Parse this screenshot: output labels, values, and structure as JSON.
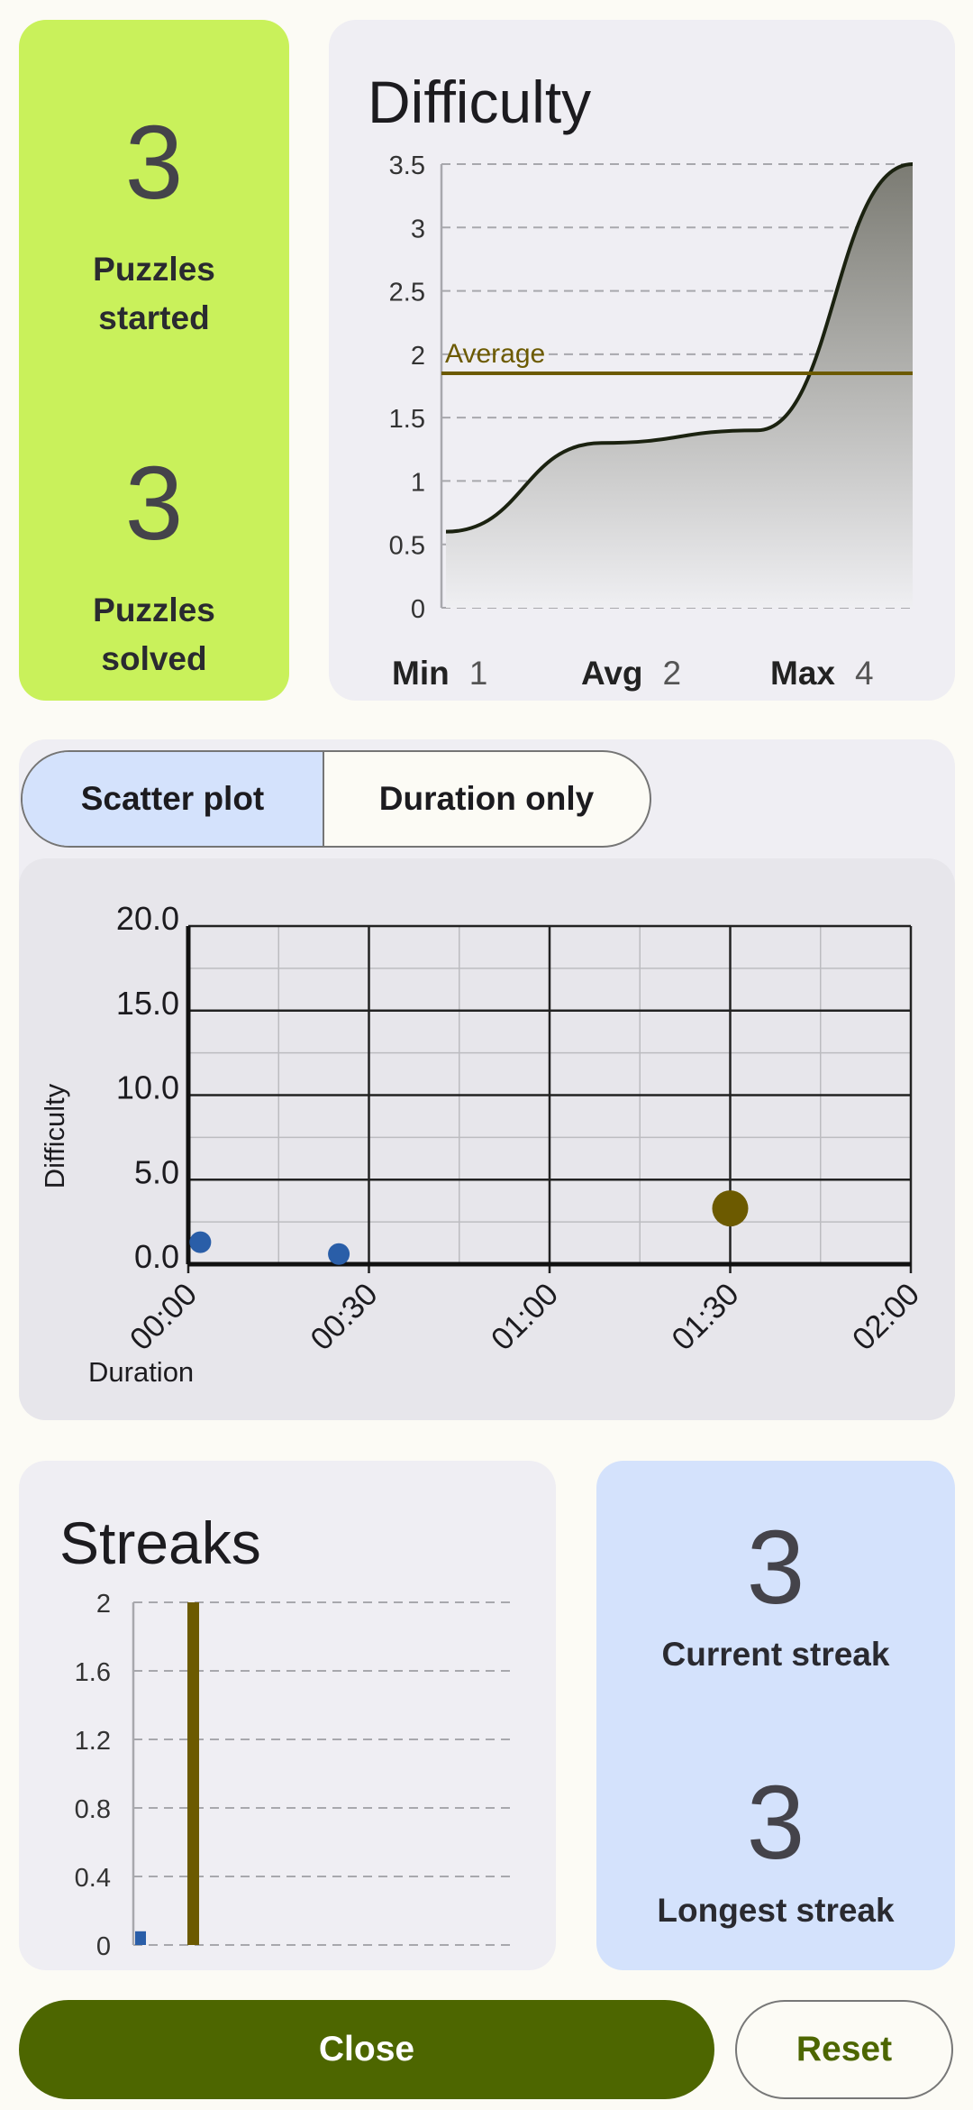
{
  "summary": {
    "started_count": "3",
    "started_label_1": "Puzzles",
    "started_label_2": "started",
    "solved_count": "3",
    "solved_label_1": "Puzzles",
    "solved_label_2": "solved"
  },
  "difficulty": {
    "title": "Difficulty",
    "average_label": "Average",
    "min_key": "Min",
    "min_val": "1",
    "avg_key": "Avg",
    "avg_val": "2",
    "max_key": "Max",
    "max_val": "4",
    "y_ticks": [
      "0",
      "0.5",
      "1",
      "1.5",
      "2",
      "2.5",
      "3",
      "3.5"
    ]
  },
  "tabs": {
    "scatter": "Scatter plot",
    "duration": "Duration only"
  },
  "scatter": {
    "x_ticks": [
      "00:00",
      "00:30",
      "01:00",
      "01:30",
      "02:00"
    ],
    "y_ticks": [
      "0.0",
      "5.0",
      "10.0",
      "15.0",
      "20.0"
    ],
    "xlabel": "Duration",
    "ylabel": "Difficulty"
  },
  "streaks": {
    "title": "Streaks",
    "y_ticks": [
      "0",
      "0.4",
      "0.8",
      "1.2",
      "1.6",
      "2"
    ],
    "current_value": "3",
    "current_label": "Current streak",
    "longest_value": "3",
    "longest_label": "Longest streak"
  },
  "actions": {
    "close": "Close",
    "reset": "Reset"
  },
  "colors": {
    "accent": "#4d6600",
    "highlight": "#c9f15b",
    "blue": "#2a5ea8",
    "gold": "#6c5a00"
  },
  "chart_data": [
    {
      "type": "area",
      "title": "Difficulty",
      "ylim": [
        0,
        3.5
      ],
      "x": [
        0,
        1,
        2,
        3
      ],
      "values": [
        0.6,
        1.3,
        1.4,
        3.5
      ],
      "average": 1.85,
      "grid": true
    },
    {
      "type": "scatter",
      "xlabel": "Duration",
      "ylabel": "Difficulty",
      "x_range": [
        "00:00",
        "02:00"
      ],
      "ylim": [
        0,
        20
      ],
      "series": [
        {
          "color": "#2a5ea8",
          "points": [
            {
              "x": "00:02",
              "y": 1.3
            },
            {
              "x": "00:25",
              "y": 0.6
            }
          ]
        },
        {
          "color": "#6c5a00",
          "points": [
            {
              "x": "01:30",
              "y": 3.3
            }
          ]
        }
      ],
      "grid": true
    },
    {
      "type": "bar",
      "title": "Streaks",
      "ylim": [
        0,
        2
      ],
      "series": [
        {
          "color": "#2a5ea8",
          "values": [
            0.08
          ]
        },
        {
          "color": "#6c5a00",
          "values": [
            2
          ]
        }
      ],
      "grid": true
    }
  ]
}
